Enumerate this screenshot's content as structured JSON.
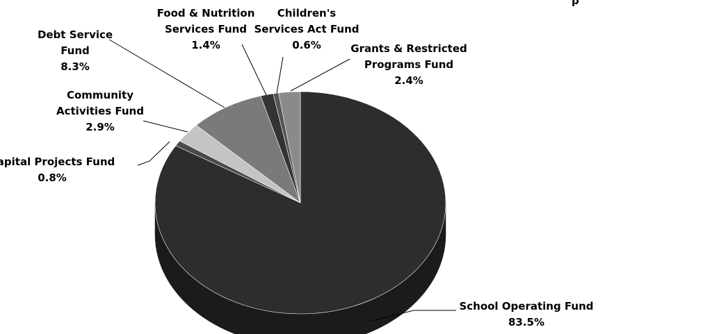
{
  "chart_data": {
    "type": "pie",
    "title": "",
    "labels": [
      "School Operating Fund",
      "Capital Projects Fund",
      "Community Activities Fund",
      "Debt Service Fund",
      "Food & Nutrition Services Fund",
      "Children's Services Act Fund",
      "Grants & Restricted Programs Fund"
    ],
    "values": [
      83.5,
      0.8,
      2.9,
      8.3,
      1.4,
      0.6,
      2.4
    ],
    "value_labels": [
      "83.5%",
      "0.8%",
      "2.9%",
      "8.3%",
      "1.4%",
      "0.6%",
      "2.4%"
    ],
    "colors": [
      "#2d2d2d",
      "#4a4a4a",
      "#c4c4c4",
      "#7a7a7a",
      "#333333",
      "#555555",
      "#8a8a8a"
    ],
    "style": "3d-tilted",
    "legend": "none"
  },
  "slice_labels": [
    {
      "lines": [
        "School Operating Fund"
      ],
      "pct": "83.5%"
    },
    {
      "lines": [
        "Capital Projects Fund"
      ],
      "pct": "0.8%"
    },
    {
      "lines": [
        "Community",
        "Activities Fund"
      ],
      "pct": "2.9%"
    },
    {
      "lines": [
        "Debt Service",
        "Fund"
      ],
      "pct": "8.3%"
    },
    {
      "lines": [
        "Food & Nutrition",
        "Services Fund"
      ],
      "pct": "1.4%"
    },
    {
      "lines": [
        "Children's",
        "Services Act Fund"
      ],
      "pct": "0.6%"
    },
    {
      "lines": [
        "Grants & Restricted",
        "Programs Fund"
      ],
      "pct": "2.4%"
    }
  ],
  "partial_title": "p"
}
